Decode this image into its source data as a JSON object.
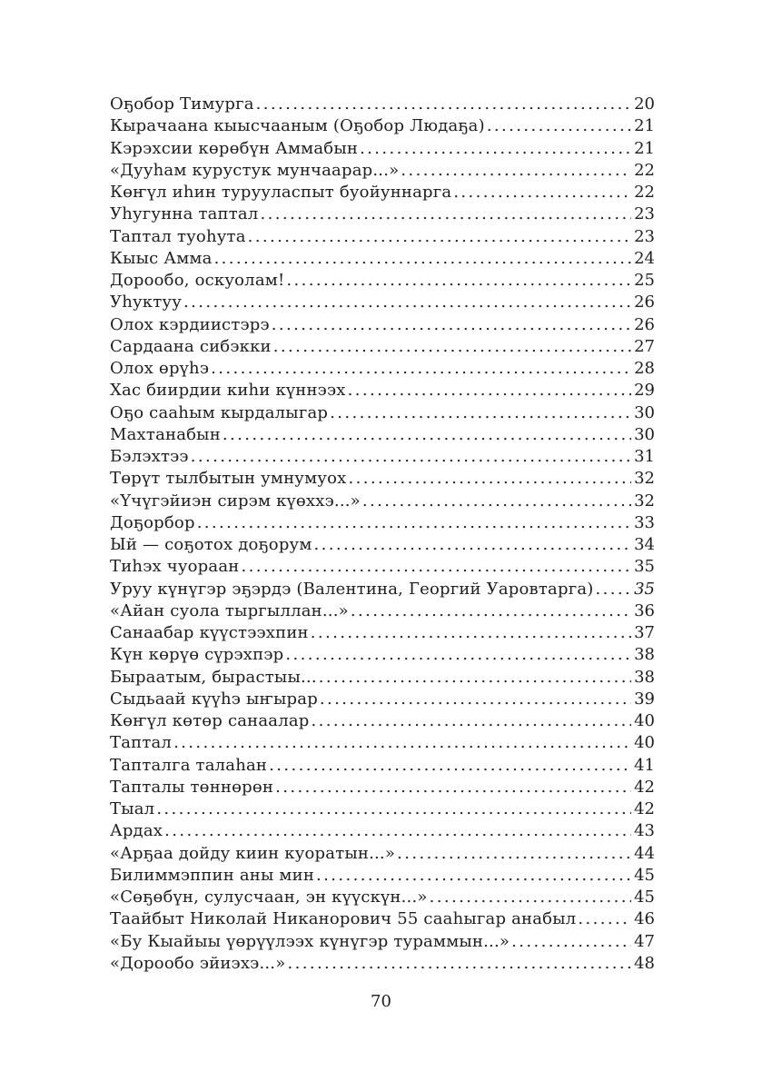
{
  "page": {
    "background_color": "#ffffff",
    "text_color": "#1e1e1e"
  },
  "toc": {
    "entries": [
      {
        "title": "Оҕобор Тимурга",
        "page": "20"
      },
      {
        "title": "Кырачаана кыысчааным (Оҕобор Людаҕа)",
        "page": "21"
      },
      {
        "title": "Кэрэхсии көрөбүн Аммабын",
        "page": "21"
      },
      {
        "title": "«Дууһам курустук мунчаарар...»",
        "page": "22"
      },
      {
        "title": "Көҥүл иһин турууласпыт буойуннарга",
        "page": "22"
      },
      {
        "title": "Уһугунна таптал",
        "page": "23"
      },
      {
        "title": "Таптал туоһута",
        "page": "23"
      },
      {
        "title": "Кыыс Амма",
        "page": "24"
      },
      {
        "title": "Дорообо, оскуолам!",
        "page": "25"
      },
      {
        "title": "Уһуктуу",
        "page": "26"
      },
      {
        "title": "Олох кэрдиистэрэ",
        "page": "26"
      },
      {
        "title": "Сардаана сибэкки",
        "page": "27"
      },
      {
        "title": "Олох өрүһэ",
        "page": "28"
      },
      {
        "title": "Хас биирдии киһи күннээх",
        "page": "29"
      },
      {
        "title": "Оҕо сааһым кырдалыгар",
        "page": "30"
      },
      {
        "title": "Махтанабын",
        "page": "30"
      },
      {
        "title": "Бэлэхтээ",
        "page": "31"
      },
      {
        "title": "Төрүт тылбытын умнумуох",
        "page": "32"
      },
      {
        "title": "«Үчүгэйиэн сирэм күөххэ...»",
        "page": "32"
      },
      {
        "title": "Доҕорбор",
        "page": "33"
      },
      {
        "title": "Ый — соҕотох доҕорум",
        "page": "34"
      },
      {
        "title": "Тиһэх чуораан",
        "page": "35"
      },
      {
        "title": "Уруу күнүгэр эҕэрдэ (Валентина, Георгий Уаровтарга)",
        "page": "35",
        "page_italic": true
      },
      {
        "title": "«Айан суола тыргыллан...»",
        "page": "36"
      },
      {
        "title": "Санаабар күүстээхпин",
        "page": "37"
      },
      {
        "title": "Күн көрүө сүрэхпэр",
        "page": "38"
      },
      {
        "title": "Быраатым, бырастыы...",
        "page": "38"
      },
      {
        "title": "Сыдьаай күүһэ ыҥырар",
        "page": "39"
      },
      {
        "title": "Көҥүл көтөр санаалар",
        "page": "40"
      },
      {
        "title": "Таптал",
        "page": "40"
      },
      {
        "title": "Тапталга талаһан",
        "page": "41"
      },
      {
        "title": "Тапталы төннөрөн",
        "page": "42"
      },
      {
        "title": "Тыал",
        "page": "42"
      },
      {
        "title": "Ардах",
        "page": "43"
      },
      {
        "title": "«Арҕаа дойду киин куоратын...»",
        "page": "44"
      },
      {
        "title": "Билиммэппин аны мин",
        "page": "45"
      },
      {
        "title": "«Сөҕөбүн, сулусчаан, эн күүскүн...»",
        "page": "45"
      },
      {
        "title": "Таайбыт Николай Никанорович 55 сааһыгар анабыл",
        "page": "46"
      },
      {
        "title": "«Бу Кыайыы үөрүүлээх күнүгэр тураммын...»",
        "page": "47"
      },
      {
        "title": "«Дорообо эйиэхэ...»",
        "page": "48"
      }
    ]
  },
  "footer": {
    "page_number": "70"
  }
}
